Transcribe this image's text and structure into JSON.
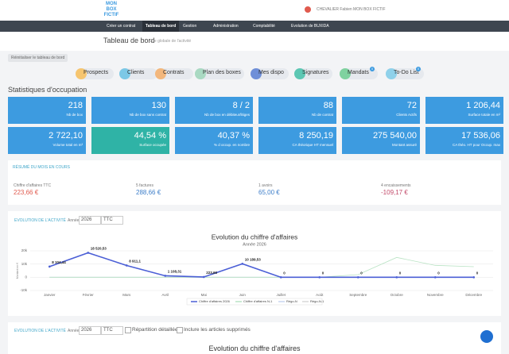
{
  "header": {
    "logo": "MON BOX FICTIF",
    "user": "CHEVALIER Fabien MON BOX FICTIF"
  },
  "nav": [
    "Créer un contrat",
    "Tableau de bord",
    "Gestion",
    "Administration",
    "Comptabilité",
    "Evolution de BUXIDA"
  ],
  "page": {
    "title": "Tableau de bord",
    "subtitle": "Vue globale de l'activité",
    "reset_button": "Réinitialiser le tableau de bord"
  },
  "shortcuts": [
    {
      "label": "Prospects",
      "color": "#f6c56f"
    },
    {
      "label": "Clients",
      "color": "#7cc8e6"
    },
    {
      "label": "Contrats",
      "color": "#f3b77c"
    },
    {
      "label": "Plan des boxes",
      "color": "#a9d9c2"
    },
    {
      "label": "Mes dispo",
      "color": "#6f8fd8"
    },
    {
      "label": "Signatures",
      "color": "#5cc7b3"
    },
    {
      "label": "Mandats",
      "color": "#7fd29f",
      "badge": "0"
    },
    {
      "label": "To-Do List",
      "color": "#8fd1ea",
      "badge": "0"
    }
  ],
  "stats": {
    "title": "Statistiques d'occupation",
    "tiles": [
      {
        "value": "218",
        "label": "Nb de box",
        "color": "#3d9be0"
      },
      {
        "value": "130",
        "label": "Nb de box sans contrat",
        "color": "#3d9be0"
      },
      {
        "value": "8 / 2",
        "label": "Nb de box en débiteur/litiges",
        "color": "#3d9be0"
      },
      {
        "value": "88",
        "label": "Nb de contrat",
        "color": "#3d9be0"
      },
      {
        "value": "72",
        "label": "Clients Actifs",
        "color": "#3d9be0"
      },
      {
        "value": "1 206,44",
        "label": "Surface totale en m²",
        "color": "#3d9be0"
      },
      {
        "value": "2 722,10",
        "label": "Volume total en m³",
        "color": "#3d9be0"
      },
      {
        "value": "44,54 %",
        "label": "Surface occupée",
        "color": "#2fb3a6"
      },
      {
        "value": "40,37 %",
        "label": "% d occup. en nombre",
        "color": "#3d9be0"
      },
      {
        "value": "8 250,19",
        "label": "CA théorique HT mensuel",
        "color": "#3d9be0"
      },
      {
        "value": "275 540,00",
        "label": "Montant assuré",
        "color": "#3d9be0"
      },
      {
        "value": "17 536,06",
        "label": "CA théo. HT pour Occup. max",
        "color": "#3d9be0"
      }
    ]
  },
  "summary": {
    "title": "RÉSUMÉ DU MOIS EN COURS",
    "items": [
      {
        "label": "Chiffre d'affaires TTC",
        "amount": "223,66 €",
        "color": "#e05a4e"
      },
      {
        "label": "5 factures",
        "amount": "288,66 €",
        "color": "#3d7ec9"
      },
      {
        "label": "1 avoirs",
        "amount": "65,00 €",
        "color": "#3d7ec9"
      },
      {
        "label": "4 encaissements",
        "amount": "-109,17 €",
        "color": "#c24a6a"
      }
    ]
  },
  "activity_panels": [
    {
      "title": "EVOLUTION DE L'ACTIVITÉ",
      "year_label": "Année",
      "year": "2026",
      "tax": "TTC"
    },
    {
      "title": "EVOLUTION DE L'ACTIVITÉ",
      "year_label": "Année",
      "year": "2026",
      "tax": "TTC",
      "options": [
        "Répartition détaillée",
        "Inclure les articles supprimés"
      ],
      "chart_title": "Evolution du chiffre d'affaires"
    }
  ],
  "chart_data": {
    "type": "line",
    "title": "Evolution du chiffre d'affaires",
    "subtitle": "Année 2026",
    "y_label": "Montant en €",
    "categories": [
      "Janvier",
      "Février",
      "Mars",
      "Avril",
      "Mai",
      "Juin",
      "Juillet",
      "Août",
      "Septembre",
      "Octobre",
      "Novembre",
      "Décembre"
    ],
    "ylim": [
      -10000,
      20000
    ],
    "yticks": [
      {
        "value": -10000,
        "label": "-10k"
      },
      0,
      {
        "value": 10000,
        "label": "10k"
      },
      {
        "value": 20000,
        "label": "20k"
      }
    ],
    "grid": true,
    "series": [
      {
        "name": "Chiffre d'affaires 2026",
        "color": "#4b5fd6",
        "values": [
          8104.44,
          18520.53,
          8911.1,
          1108.31,
          223.66,
          10189.53,
          0,
          0,
          0,
          0,
          0,
          0
        ],
        "value_labels": [
          "8 104,44",
          "18 520,53",
          "8 911,1",
          "1 108,31",
          "223,66",
          "10 189,53",
          "0",
          "0",
          "0",
          "0",
          "0",
          "0"
        ]
      },
      {
        "name": "Chiffre d'affaires N-1",
        "color": "#b9e3c4",
        "values": [
          0,
          0,
          0,
          0,
          0,
          0,
          0,
          0,
          2000,
          15000,
          9000,
          8000
        ]
      },
      {
        "name": "Régo-N",
        "color": "#c9d6f0",
        "values": [
          0,
          0,
          0,
          0,
          0,
          0,
          0,
          0,
          0,
          0,
          0,
          0
        ]
      },
      {
        "name": "Régo-N-1",
        "color": "#d9d9d9",
        "values": [
          0,
          0,
          0,
          0,
          0,
          0,
          0,
          0,
          0,
          0,
          0,
          0
        ]
      }
    ]
  }
}
